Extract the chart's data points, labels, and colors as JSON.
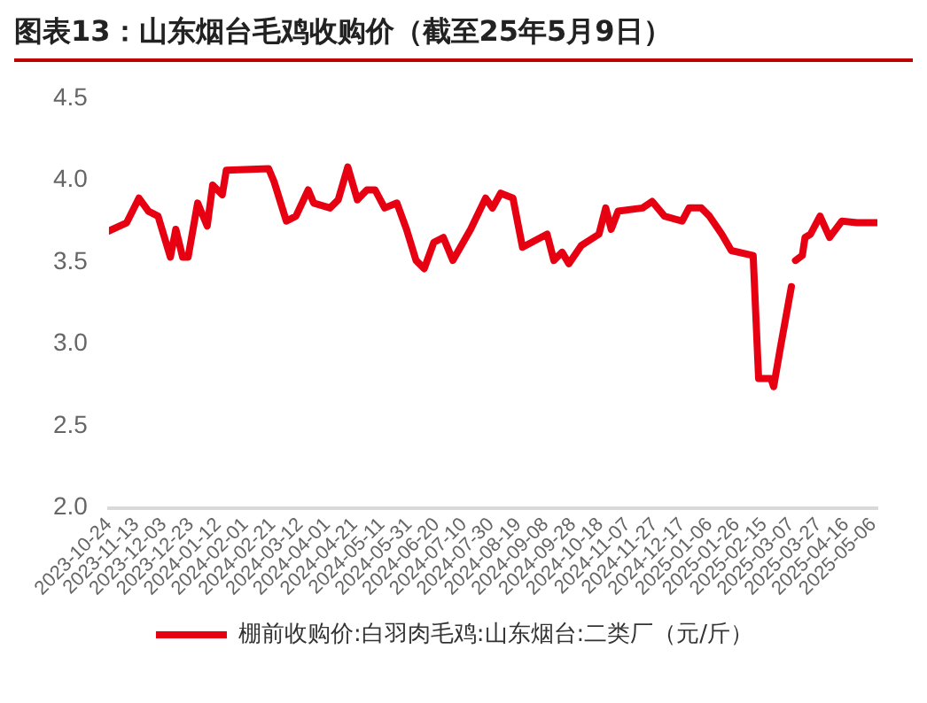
{
  "chart_data": {
    "type": "line",
    "title": "图表13：山东烟台毛鸡收购价（截至25年5月9日）",
    "x": [
      "2023-10-24",
      "2023-11-06",
      "2023-11-15",
      "2023-11-22",
      "2023-11-29",
      "2023-12-08",
      "2023-12-12",
      "2023-12-17",
      "2023-12-21",
      "2023-12-28",
      "2024-01-04",
      "2024-01-08",
      "2024-01-15",
      "2024-01-18",
      "2024-02-18",
      "2024-02-22",
      "2024-03-02",
      "2024-03-09",
      "2024-03-18",
      "2024-03-22",
      "2024-04-03",
      "2024-04-09",
      "2024-04-16",
      "2024-04-23",
      "2024-04-30",
      "2024-05-06",
      "2024-05-13",
      "2024-05-22",
      "2024-05-29",
      "2024-06-05",
      "2024-06-11",
      "2024-06-18",
      "2024-06-25",
      "2024-07-02",
      "2024-07-15",
      "2024-07-26",
      "2024-07-31",
      "2024-08-06",
      "2024-08-15",
      "2024-08-22",
      "2024-09-09",
      "2024-09-14",
      "2024-09-20",
      "2024-09-25",
      "2024-10-04",
      "2024-10-17",
      "2024-10-22",
      "2024-10-26",
      "2024-10-31",
      "2024-11-18",
      "2024-11-25",
      "2024-12-04",
      "2024-12-17",
      "2024-12-22",
      "2024-12-31",
      "2025-01-06",
      "2025-01-15",
      "2025-01-22",
      "2025-02-07",
      "2025-02-11",
      "2025-02-20",
      "2025-02-22",
      "2025-02-27",
      "2025-03-07",
      "2025-03-08",
      "2025-03-10",
      "2025-03-15",
      "2025-03-17",
      "2025-03-21",
      "2025-03-28",
      "2025-04-04",
      "2025-04-13",
      "2025-04-24",
      "2025-05-09"
    ],
    "series": [
      {
        "name": "棚前收购价:白羽肉毛鸡:山东烟台:二类厂（元/斤）",
        "color": "#e60012",
        "values": [
          3.69,
          3.74,
          3.89,
          3.81,
          3.78,
          3.53,
          3.7,
          3.53,
          3.53,
          3.86,
          3.72,
          3.97,
          3.91,
          4.06,
          4.07,
          3.99,
          3.75,
          3.78,
          3.94,
          3.86,
          3.83,
          3.88,
          4.08,
          3.88,
          3.94,
          3.94,
          3.83,
          3.86,
          3.7,
          3.51,
          3.46,
          3.62,
          3.65,
          3.51,
          3.7,
          3.89,
          3.83,
          3.92,
          3.89,
          3.59,
          3.67,
          3.51,
          3.56,
          3.49,
          3.6,
          3.67,
          3.83,
          3.7,
          3.81,
          3.83,
          3.87,
          3.78,
          3.75,
          3.83,
          3.83,
          3.78,
          3.67,
          3.57,
          3.54,
          2.79,
          2.79,
          2.74,
          2.98,
          3.35,
          null,
          3.51,
          3.54,
          3.65,
          3.67,
          3.78,
          3.65,
          3.75,
          3.74,
          3.74
        ]
      }
    ],
    "xlim": [
      "2023-10-24",
      "2025-05-09"
    ],
    "xticks": [
      "2023-10-24",
      "2023-11-13",
      "2023-12-03",
      "2023-12-23",
      "2024-01-12",
      "2024-02-01",
      "2024-02-21",
      "2024-03-12",
      "2024-04-01",
      "2024-04-21",
      "2024-05-11",
      "2024-05-31",
      "2024-06-20",
      "2024-07-10",
      "2024-07-30",
      "2024-08-19",
      "2024-09-08",
      "2024-09-28",
      "2024-10-18",
      "2024-11-07",
      "2024-11-27",
      "2024-12-17",
      "2025-01-06",
      "2025-01-26",
      "2025-02-15",
      "2025-03-07",
      "2025-03-27",
      "2025-04-16",
      "2025-05-06"
    ],
    "ylim": [
      2.0,
      4.5
    ],
    "yticks": [
      {
        "value": 2,
        "label": "2.0"
      },
      2.5,
      {
        "value": 3,
        "label": "3.0"
      },
      3.5,
      {
        "value": 4,
        "label": "4.0"
      },
      4.5
    ],
    "grid": false,
    "legend": "bottom",
    "marker": "none",
    "line_style": "solid"
  }
}
